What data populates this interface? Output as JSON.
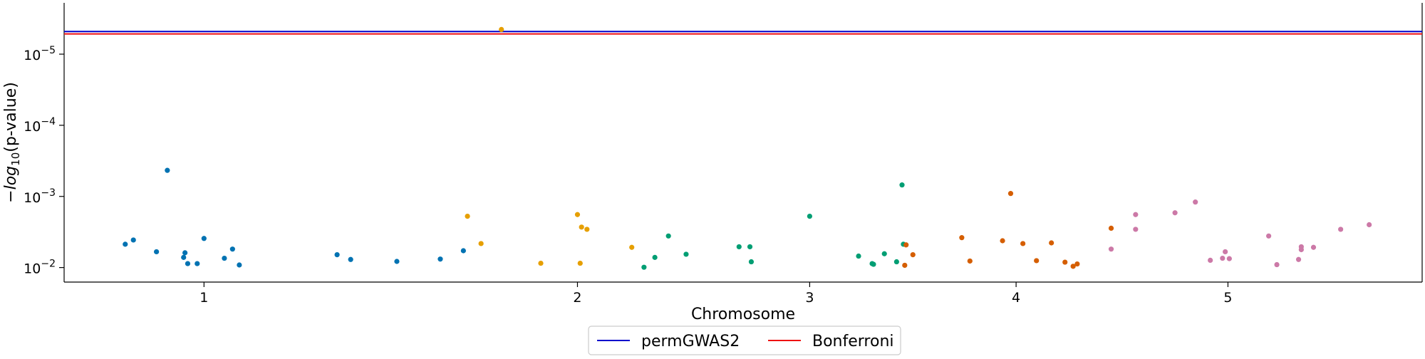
{
  "chart_data": {
    "type": "scatter",
    "title": "",
    "xlabel": "Chromosome",
    "ylabel_prefix": "−log",
    "ylabel_sub": "10",
    "ylabel_suffix": "(p-value)",
    "y_scale": "log",
    "y_inverted": true,
    "ylim": [
      0.016,
      1.9e-06
    ],
    "y_ticks": [
      {
        "value": 0.01,
        "base": "10",
        "exp": "−2"
      },
      {
        "value": 0.001,
        "base": "10",
        "exp": "−3"
      },
      {
        "value": 0.0001,
        "base": "10",
        "exp": "−4"
      },
      {
        "value": 1e-05,
        "base": "10",
        "exp": "−5"
      }
    ],
    "x_ticks": [
      {
        "label": "1",
        "pos": 0.103
      },
      {
        "label": "2",
        "pos": 0.378
      },
      {
        "label": "3",
        "pos": 0.549
      },
      {
        "label": "4",
        "pos": 0.701
      },
      {
        "label": "5",
        "pos": 0.857
      }
    ],
    "thresholds": [
      {
        "name": "permGWAS2",
        "value": 4.8e-06,
        "color": "#0000cc"
      },
      {
        "name": "Bonferroni",
        "value": 5.2e-06,
        "color": "#ee1111"
      }
    ],
    "legend_position": "below-center",
    "series": [
      {
        "chromosome": "1",
        "color": "#0072b2",
        "points": [
          {
            "pos": 0.045,
            "p": 0.0047
          },
          {
            "pos": 0.051,
            "p": 0.0041
          },
          {
            "pos": 0.068,
            "p": 0.006
          },
          {
            "pos": 0.076,
            "p": 0.00043
          },
          {
            "pos": 0.088,
            "p": 0.0072
          },
          {
            "pos": 0.089,
            "p": 0.0062
          },
          {
            "pos": 0.091,
            "p": 0.0088
          },
          {
            "pos": 0.098,
            "p": 0.0088
          },
          {
            "pos": 0.103,
            "p": 0.0039
          },
          {
            "pos": 0.118,
            "p": 0.0074
          },
          {
            "pos": 0.124,
            "p": 0.0055
          },
          {
            "pos": 0.129,
            "p": 0.0092
          },
          {
            "pos": 0.201,
            "p": 0.0066
          },
          {
            "pos": 0.211,
            "p": 0.0077
          },
          {
            "pos": 0.245,
            "p": 0.0082
          },
          {
            "pos": 0.277,
            "p": 0.0076
          },
          {
            "pos": 0.294,
            "p": 0.0058
          }
        ]
      },
      {
        "chromosome": "2",
        "color": "#e69f00",
        "points": [
          {
            "pos": 0.297,
            "p": 0.0019
          },
          {
            "pos": 0.307,
            "p": 0.0046
          },
          {
            "pos": 0.322,
            "p": 4.5e-06
          },
          {
            "pos": 0.351,
            "p": 0.0087
          },
          {
            "pos": 0.378,
            "p": 0.0018
          },
          {
            "pos": 0.381,
            "p": 0.0027
          },
          {
            "pos": 0.38,
            "p": 0.0087
          },
          {
            "pos": 0.385,
            "p": 0.0029
          },
          {
            "pos": 0.418,
            "p": 0.0052
          }
        ]
      },
      {
        "chromosome": "3",
        "color": "#009e73",
        "points": [
          {
            "pos": 0.427,
            "p": 0.0099
          },
          {
            "pos": 0.435,
            "p": 0.0072
          },
          {
            "pos": 0.445,
            "p": 0.0036
          },
          {
            "pos": 0.458,
            "p": 0.0065
          },
          {
            "pos": 0.497,
            "p": 0.0051
          },
          {
            "pos": 0.505,
            "p": 0.0051
          },
          {
            "pos": 0.506,
            "p": 0.0083
          },
          {
            "pos": 0.549,
            "p": 0.0019
          },
          {
            "pos": 0.585,
            "p": 0.0069
          },
          {
            "pos": 0.595,
            "p": 0.0088
          },
          {
            "pos": 0.596,
            "p": 0.009
          },
          {
            "pos": 0.604,
            "p": 0.0064
          },
          {
            "pos": 0.613,
            "p": 0.0083
          },
          {
            "pos": 0.617,
            "p": 0.00069
          },
          {
            "pos": 0.618,
            "p": 0.0047
          }
        ]
      },
      {
        "chromosome": "4",
        "color": "#d55e00",
        "points": [
          {
            "pos": 0.62,
            "p": 0.0048
          },
          {
            "pos": 0.619,
            "p": 0.0093
          },
          {
            "pos": 0.625,
            "p": 0.0066
          },
          {
            "pos": 0.661,
            "p": 0.0038
          },
          {
            "pos": 0.667,
            "p": 0.0081
          },
          {
            "pos": 0.691,
            "p": 0.0042
          },
          {
            "pos": 0.697,
            "p": 0.00091
          },
          {
            "pos": 0.706,
            "p": 0.0046
          },
          {
            "pos": 0.716,
            "p": 0.008
          },
          {
            "pos": 0.727,
            "p": 0.0045
          },
          {
            "pos": 0.737,
            "p": 0.0084
          },
          {
            "pos": 0.743,
            "p": 0.0096
          },
          {
            "pos": 0.746,
            "p": 0.0089
          },
          {
            "pos": 0.771,
            "p": 0.0028
          }
        ]
      },
      {
        "chromosome": "5",
        "color": "#cc79a7",
        "points": [
          {
            "pos": 0.771,
            "p": 0.0055
          },
          {
            "pos": 0.789,
            "p": 0.0018
          },
          {
            "pos": 0.789,
            "p": 0.0029
          },
          {
            "pos": 0.818,
            "p": 0.0017
          },
          {
            "pos": 0.833,
            "p": 0.0012
          },
          {
            "pos": 0.844,
            "p": 0.0079
          },
          {
            "pos": 0.853,
            "p": 0.0074
          },
          {
            "pos": 0.855,
            "p": 0.006
          },
          {
            "pos": 0.858,
            "p": 0.0075
          },
          {
            "pos": 0.887,
            "p": 0.0036
          },
          {
            "pos": 0.893,
            "p": 0.0091
          },
          {
            "pos": 0.909,
            "p": 0.0077
          },
          {
            "pos": 0.911,
            "p": 0.0051
          },
          {
            "pos": 0.911,
            "p": 0.0056
          },
          {
            "pos": 0.92,
            "p": 0.0052
          },
          {
            "pos": 0.94,
            "p": 0.0029
          },
          {
            "pos": 0.961,
            "p": 0.0025
          }
        ]
      }
    ]
  }
}
